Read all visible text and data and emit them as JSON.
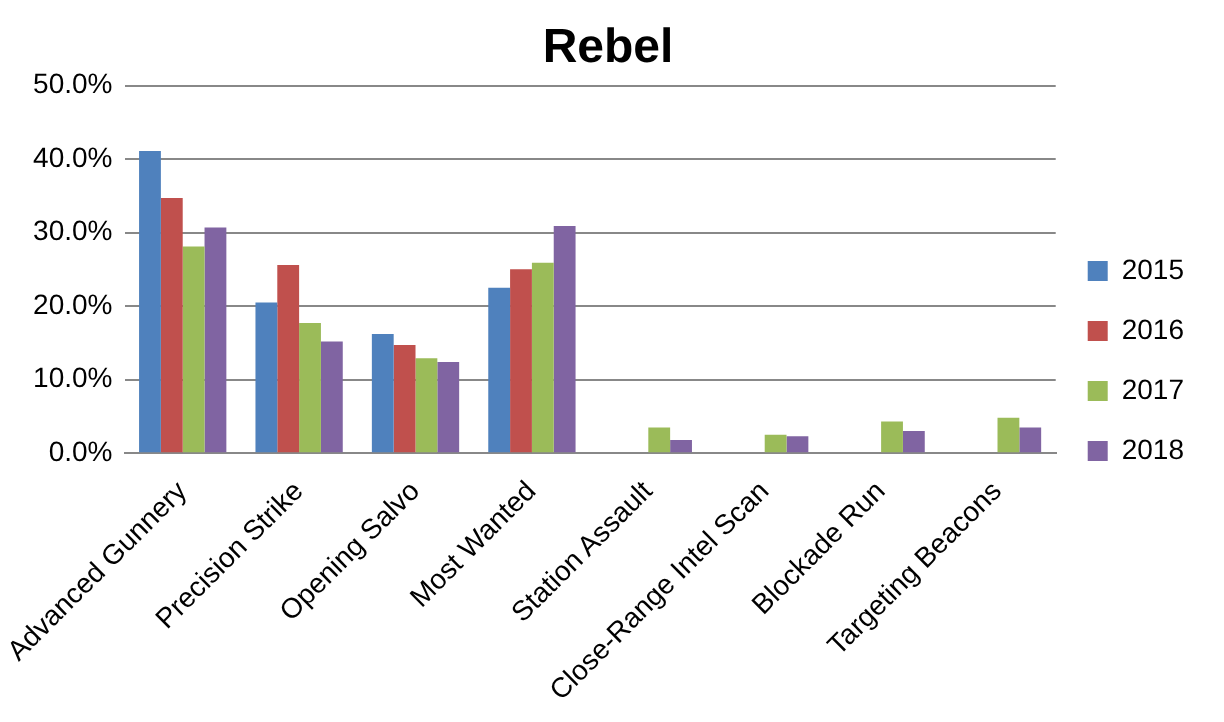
{
  "chart_data": {
    "type": "bar",
    "title": "Rebel",
    "categories": [
      "Advanced Gunnery",
      "Precision Strike",
      "Opening Salvo",
      "Most Wanted",
      "Station Assault",
      "Close-Range Intel Scan",
      "Blockade Run",
      "Targeting Beacons"
    ],
    "series": [
      {
        "name": "2015",
        "color": "#4f81bd",
        "values": [
          41.1,
          20.5,
          16.2,
          22.5,
          null,
          null,
          null,
          null
        ]
      },
      {
        "name": "2016",
        "color": "#c0504d",
        "values": [
          34.7,
          25.6,
          14.7,
          25.0,
          null,
          null,
          null,
          null
        ]
      },
      {
        "name": "2017",
        "color": "#9bbb59",
        "values": [
          28.1,
          17.7,
          12.9,
          25.9,
          3.5,
          2.5,
          4.3,
          4.8
        ]
      },
      {
        "name": "2018",
        "color": "#8064a2",
        "values": [
          30.7,
          15.2,
          12.4,
          30.9,
          1.8,
          2.3,
          3.0,
          3.5
        ]
      }
    ],
    "ylim": [
      0,
      50
    ],
    "yticks": [
      {
        "value": 0,
        "label": "0.0%"
      },
      {
        "value": 10,
        "label": "10.0%"
      },
      {
        "value": 20,
        "label": "20.0%"
      },
      {
        "value": 30,
        "label": "30.0%"
      },
      {
        "value": 40,
        "label": "40.0%"
      },
      {
        "value": 50,
        "label": "50.0%"
      }
    ],
    "grid": "y",
    "legend": "right"
  }
}
